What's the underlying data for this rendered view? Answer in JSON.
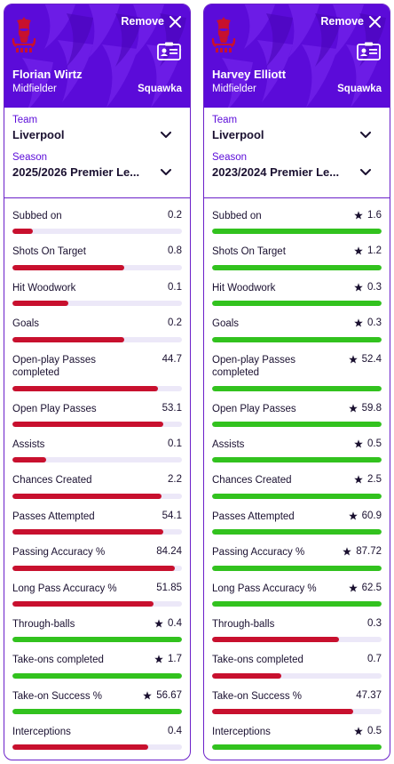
{
  "colors": {
    "brand_purple": "#5b0bd9",
    "bar_red": "#c8102e",
    "bar_green": "#32c21e",
    "track": "#ece8f8"
  },
  "cards": [
    {
      "remove_label": "Remove",
      "player_name": "Florian Wirtz",
      "position": "Midfielder",
      "brand": "Squawka",
      "team_label": "Team",
      "team_value": "Liverpool",
      "season_label": "Season",
      "season_value": "2025/2026 Premier Le...",
      "stats": [
        {
          "label": "Subbed on",
          "value": "0.2",
          "best": false,
          "fill": 0.12
        },
        {
          "label": "Shots On Target",
          "value": "0.8",
          "best": false,
          "fill": 0.66
        },
        {
          "label": "Hit Woodwork",
          "value": "0.1",
          "best": false,
          "fill": 0.33
        },
        {
          "label": "Goals",
          "value": "0.2",
          "best": false,
          "fill": 0.66
        },
        {
          "label": "Open-play Passes completed",
          "value": "44.7",
          "best": false,
          "fill": 0.86
        },
        {
          "label": "Open Play Passes",
          "value": "53.1",
          "best": false,
          "fill": 0.89
        },
        {
          "label": "Assists",
          "value": "0.1",
          "best": false,
          "fill": 0.2
        },
        {
          "label": "Chances Created",
          "value": "2.2",
          "best": false,
          "fill": 0.88
        },
        {
          "label": "Passes Attempted",
          "value": "54.1",
          "best": false,
          "fill": 0.89
        },
        {
          "label": "Passing Accuracy %",
          "value": "84.24",
          "best": false,
          "fill": 0.96
        },
        {
          "label": "Long Pass Accuracy %",
          "value": "51.85",
          "best": false,
          "fill": 0.83
        },
        {
          "label": "Through-balls",
          "value": "0.4",
          "best": true,
          "fill": 1.0
        },
        {
          "label": "Take-ons completed",
          "value": "1.7",
          "best": true,
          "fill": 1.0
        },
        {
          "label": "Take-on Success %",
          "value": "56.67",
          "best": true,
          "fill": 1.0
        },
        {
          "label": "Interceptions",
          "value": "0.4",
          "best": false,
          "fill": 0.8
        }
      ]
    },
    {
      "remove_label": "Remove",
      "player_name": "Harvey Elliott",
      "position": "Midfielder",
      "brand": "Squawka",
      "team_label": "Team",
      "team_value": "Liverpool",
      "season_label": "Season",
      "season_value": "2023/2024 Premier Le...",
      "stats": [
        {
          "label": "Subbed on",
          "value": "1.6",
          "best": true,
          "fill": 1.0
        },
        {
          "label": "Shots On Target",
          "value": "1.2",
          "best": true,
          "fill": 1.0
        },
        {
          "label": "Hit Woodwork",
          "value": "0.3",
          "best": true,
          "fill": 1.0
        },
        {
          "label": "Goals",
          "value": "0.3",
          "best": true,
          "fill": 1.0
        },
        {
          "label": "Open-play Passes completed",
          "value": "52.4",
          "best": true,
          "fill": 1.0
        },
        {
          "label": "Open Play Passes",
          "value": "59.8",
          "best": true,
          "fill": 1.0
        },
        {
          "label": "Assists",
          "value": "0.5",
          "best": true,
          "fill": 1.0
        },
        {
          "label": "Chances Created",
          "value": "2.5",
          "best": true,
          "fill": 1.0
        },
        {
          "label": "Passes Attempted",
          "value": "60.9",
          "best": true,
          "fill": 1.0
        },
        {
          "label": "Passing Accuracy %",
          "value": "87.72",
          "best": true,
          "fill": 1.0
        },
        {
          "label": "Long Pass Accuracy %",
          "value": "62.5",
          "best": true,
          "fill": 1.0
        },
        {
          "label": "Through-balls",
          "value": "0.3",
          "best": false,
          "fill": 0.75
        },
        {
          "label": "Take-ons completed",
          "value": "0.7",
          "best": false,
          "fill": 0.41
        },
        {
          "label": "Take-on Success %",
          "value": "47.37",
          "best": false,
          "fill": 0.83
        },
        {
          "label": "Interceptions",
          "value": "0.5",
          "best": true,
          "fill": 1.0
        }
      ]
    }
  ]
}
